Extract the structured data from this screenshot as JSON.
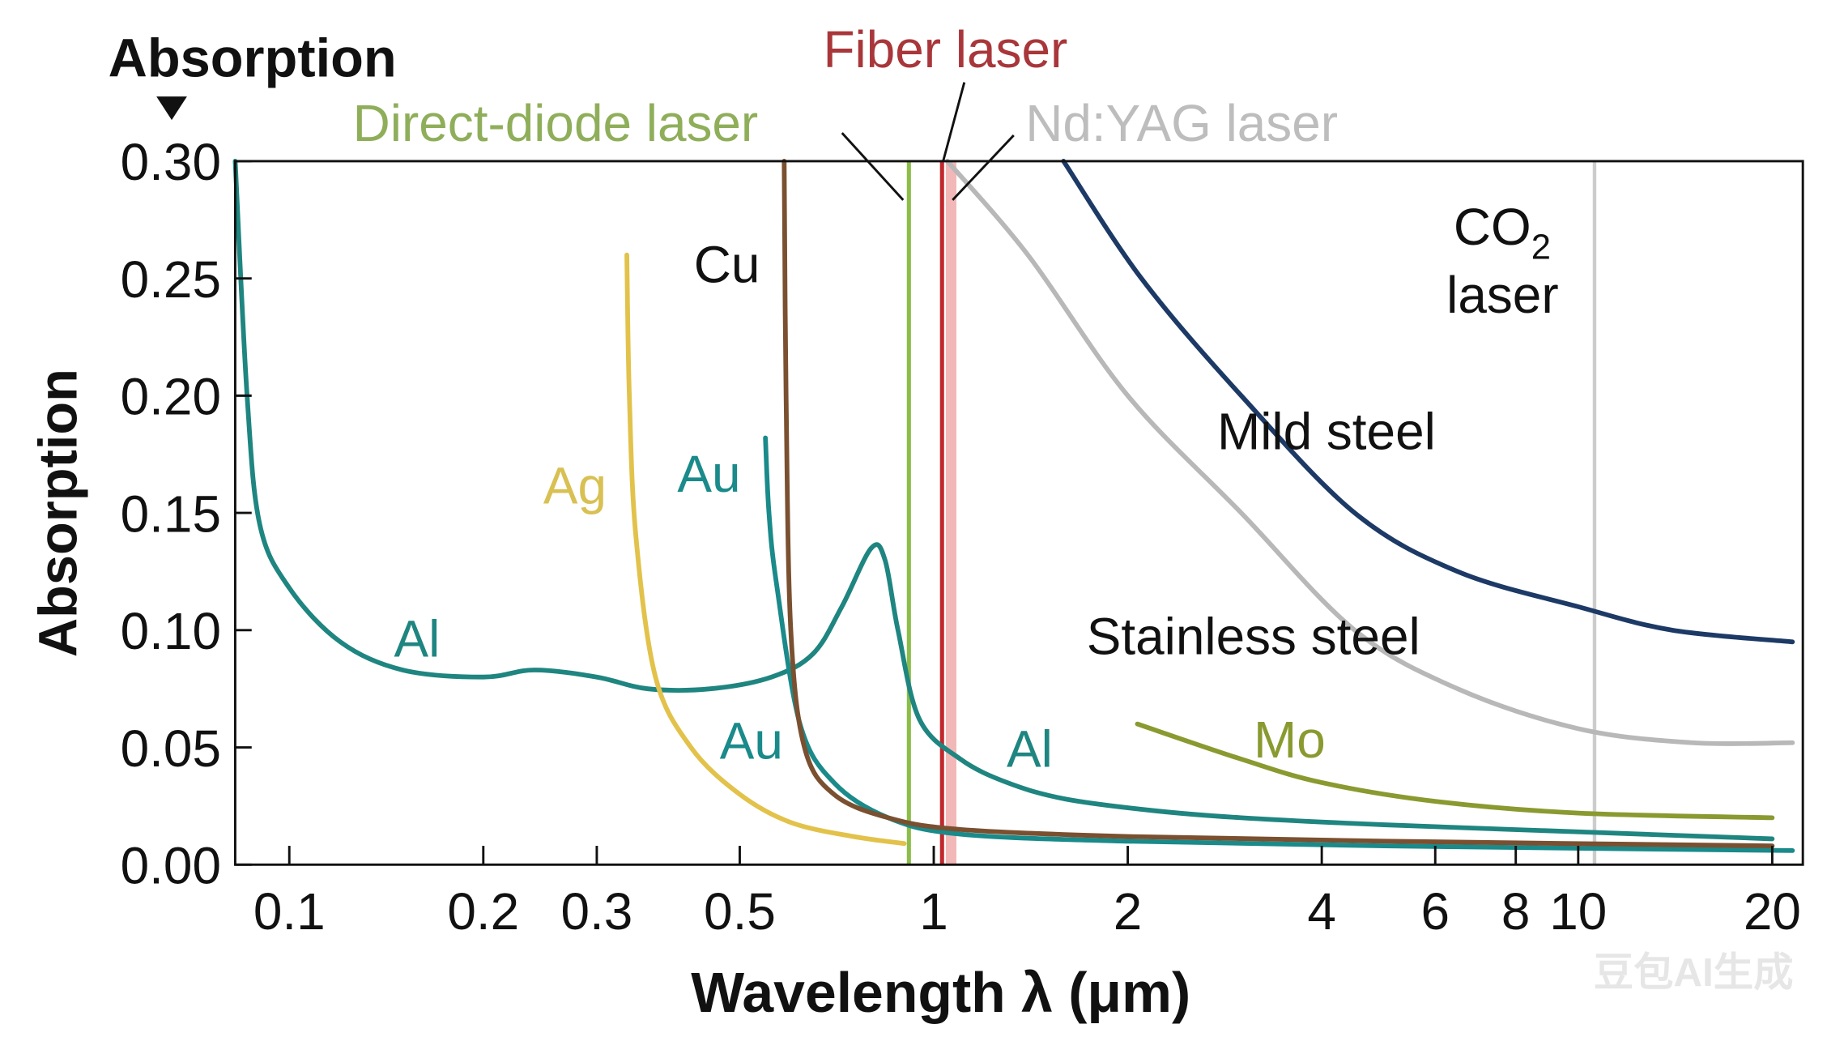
{
  "chart_data": {
    "type": "line",
    "title": "",
    "corner_label": "Absorption",
    "xlabel": "Wavelength λ (μm)",
    "ylabel": "Absorption",
    "x_scale": "log",
    "xlim": [
      0.082,
      21.5
    ],
    "ylim": [
      0,
      0.3
    ],
    "grid": false,
    "x_ticks": [
      0.1,
      0.2,
      0.3,
      0.5,
      1,
      2,
      4,
      6,
      8,
      10,
      20
    ],
    "x_tick_labels": [
      "0.1",
      "0.2",
      "0.3",
      "0.5",
      "1",
      "2",
      "4",
      "6",
      "8",
      "10",
      "20"
    ],
    "y_ticks": [
      0,
      0.05,
      0.1,
      0.15,
      0.2,
      0.25,
      0.3
    ],
    "y_tick_labels": [
      "0.00",
      "0.05",
      "0.10",
      "0.15",
      "0.20",
      "0.25",
      "0.30"
    ],
    "series": [
      {
        "name": "Al",
        "color": "#1f8580",
        "x": [
          0.082,
          0.086,
          0.09,
          0.1,
          0.12,
          0.15,
          0.2,
          0.24,
          0.3,
          0.36,
          0.45,
          0.56,
          0.65,
          0.72,
          0.8,
          0.84,
          0.88,
          0.95,
          1.1,
          1.3,
          1.6,
          2.2,
          3,
          5,
          10,
          20
        ],
        "y": [
          0.3,
          0.2,
          0.145,
          0.118,
          0.095,
          0.083,
          0.08,
          0.083,
          0.08,
          0.075,
          0.075,
          0.08,
          0.09,
          0.11,
          0.135,
          0.13,
          0.1,
          0.062,
          0.045,
          0.035,
          0.028,
          0.023,
          0.02,
          0.017,
          0.014,
          0.011
        ]
      },
      {
        "name": "Ag",
        "color": "#e2c24a",
        "x": [
          0.334,
          0.337,
          0.345,
          0.37,
          0.42,
          0.5,
          0.6,
          0.75,
          0.9
        ],
        "y": [
          0.26,
          0.2,
          0.14,
          0.08,
          0.05,
          0.03,
          0.018,
          0.012,
          0.009
        ]
      },
      {
        "name": "Au",
        "color": "#1a8a8a",
        "x": [
          0.548,
          0.555,
          0.57,
          0.62,
          0.7,
          0.85,
          1.1,
          2,
          5,
          21.5
        ],
        "y": [
          0.182,
          0.15,
          0.12,
          0.06,
          0.035,
          0.02,
          0.013,
          0.01,
          0.008,
          0.006
        ]
      },
      {
        "name": "Cu",
        "color": "#7a5030",
        "x": [
          0.586,
          0.59,
          0.6,
          0.63,
          0.7,
          0.85,
          1.1,
          2,
          5,
          20
        ],
        "y": [
          0.3,
          0.2,
          0.1,
          0.05,
          0.03,
          0.02,
          0.015,
          0.012,
          0.01,
          0.008
        ]
      },
      {
        "name": "Mild steel",
        "color": "#1d3a66",
        "x": [
          1.59,
          2.1,
          3,
          4.5,
          6.5,
          10,
          14,
          21.5
        ],
        "y": [
          0.3,
          0.25,
          0.2,
          0.15,
          0.125,
          0.11,
          0.1,
          0.095
        ]
      },
      {
        "name": "Stainless steel",
        "color": "#b8b8b8",
        "x": [
          1.05,
          1.4,
          2,
          3,
          4.5,
          6.5,
          10,
          15,
          21.5
        ],
        "y": [
          0.3,
          0.26,
          0.2,
          0.15,
          0.1,
          0.075,
          0.058,
          0.052,
          0.052
        ]
      },
      {
        "name": "Mo",
        "color": "#8a9a30",
        "x": [
          2.07,
          3,
          4,
          6,
          10,
          20
        ],
        "y": [
          0.06,
          0.045,
          0.035,
          0.027,
          0.022,
          0.02
        ]
      }
    ],
    "lasers": [
      {
        "name": "Direct-diode laser",
        "wavelength": 0.915,
        "color": "#8cbd4a"
      },
      {
        "name": "Fiber laser",
        "wavelength": 1.03,
        "color": "#c0282d"
      },
      {
        "name": "Nd:YAG laser",
        "wavelength": 1.064,
        "color": "#f2b8b8"
      },
      {
        "name": "CO2 laser",
        "wavelength": 10.6,
        "color": "#cccccc"
      }
    ],
    "annotations": {
      "al_1": "Al",
      "al_2": "Al",
      "ag": "Ag",
      "au_1": "Au",
      "au_2": "Au",
      "cu": "Cu",
      "mild_steel": "Mild steel",
      "stainless_steel": "Stainless steel",
      "mo": "Mo",
      "direct_diode": "Direct-diode laser",
      "fiber": "Fiber laser",
      "ndyag": "Nd:YAG laser",
      "co2_main": "CO",
      "co2_sub": "2",
      "co2_laser": "laser"
    },
    "label_colors": {
      "direct_diode": "#8fae5a",
      "fiber": "#a8363a",
      "ndyag": "#bdbdbd",
      "ag": "#d8c052",
      "al": "#1f8580",
      "mo": "#8a9a30"
    }
  },
  "watermark": "豆包AI生成"
}
